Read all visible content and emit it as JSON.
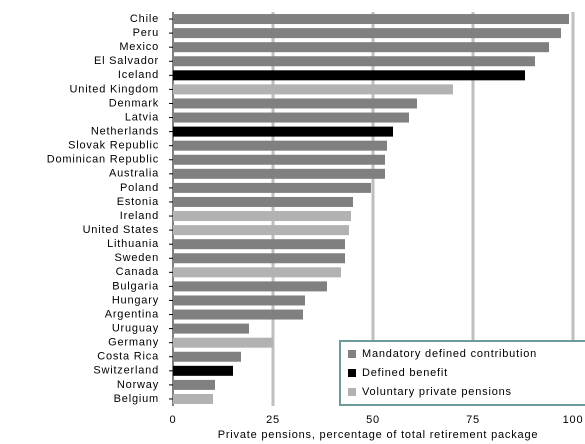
{
  "chart_data": {
    "type": "bar",
    "orientation": "horizontal",
    "categories": [
      "Chile",
      "Peru",
      "Mexico",
      "El Salvador",
      "Iceland",
      "United Kingdom",
      "Denmark",
      "Latvia",
      "Netherlands",
      "Slovak Republic",
      "Dominican Republic",
      "Australia",
      "Poland",
      "Estonia",
      "Ireland",
      "United States",
      "Lithuania",
      "Sweden",
      "Canada",
      "Bulgaria",
      "Hungary",
      "Argentina",
      "Uruguay",
      "Germany",
      "Costa Rica",
      "Switzerland",
      "Norway",
      "Belgium"
    ],
    "series": [
      {
        "name": "Mandatory defined contribution",
        "color": "#808080",
        "values": [
          99,
          97,
          94,
          90.5,
          null,
          null,
          61,
          59,
          null,
          53.5,
          53,
          53,
          49.5,
          45,
          null,
          null,
          43,
          43,
          null,
          38.5,
          33,
          32.5,
          19,
          null,
          17,
          null,
          10.5,
          null
        ]
      },
      {
        "name": "Defined benefit",
        "color": "#000000",
        "values": [
          null,
          null,
          null,
          null,
          88,
          null,
          null,
          null,
          55,
          null,
          null,
          null,
          null,
          null,
          null,
          null,
          null,
          null,
          null,
          null,
          null,
          null,
          null,
          null,
          null,
          15,
          null,
          null
        ]
      },
      {
        "name": "Voluntary private pensions",
        "color": "#b2b2b2",
        "values": [
          null,
          null,
          null,
          null,
          null,
          70,
          null,
          null,
          null,
          null,
          null,
          null,
          null,
          null,
          44.5,
          44,
          null,
          null,
          42,
          null,
          null,
          null,
          null,
          25,
          null,
          null,
          null,
          10
        ]
      }
    ],
    "x_label": "Private pensions, percentage of total retirement package",
    "xlim": [
      0,
      100
    ],
    "xticks": [
      0,
      25,
      50,
      75,
      100
    ],
    "grid": true,
    "legend": "lower right"
  }
}
